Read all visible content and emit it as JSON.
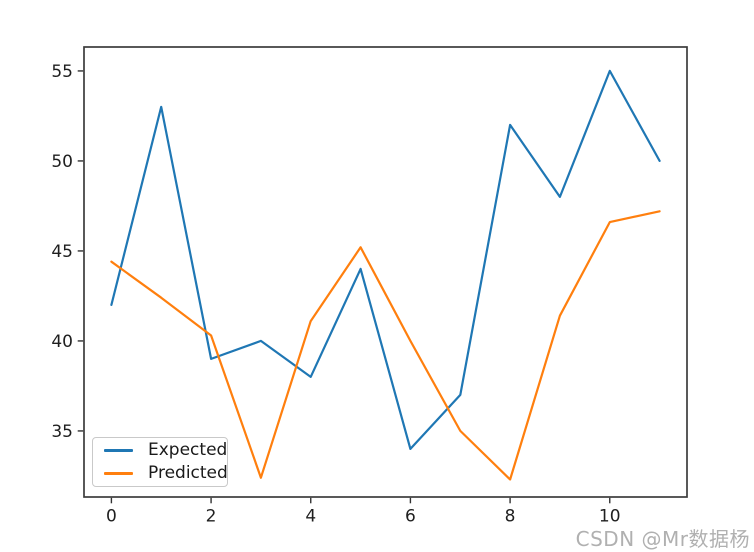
{
  "figure": {
    "background": "#ffffff",
    "watermark": "CSDN @Mr数据杨"
  },
  "chart_data": {
    "type": "line",
    "title": "",
    "xlabel": "",
    "ylabel": "",
    "x": [
      0,
      1,
      2,
      3,
      4,
      5,
      6,
      7,
      8,
      9,
      10,
      11
    ],
    "series": [
      {
        "name": "Expected",
        "color": "#1f77b4",
        "values": [
          42,
          53,
          39,
          40,
          38,
          44,
          34,
          37,
          52,
          48,
          55,
          50
        ]
      },
      {
        "name": "Predicted",
        "color": "#ff7f0e",
        "values": [
          44.4,
          42.4,
          40.3,
          32.4,
          41.1,
          45.2,
          40.0,
          35.0,
          32.3,
          41.4,
          46.6,
          47.2
        ]
      }
    ],
    "xlim": [
      -0.55,
      11.55
    ],
    "ylim": [
      31.33,
      56.33
    ],
    "xticks": [
      0,
      2,
      4,
      6,
      8,
      10
    ],
    "yticks": [
      35,
      40,
      45,
      50,
      55
    ],
    "grid": false,
    "legend_position": "lower left",
    "spine_color": "#3c3c3c",
    "tick_color": "#333333"
  }
}
